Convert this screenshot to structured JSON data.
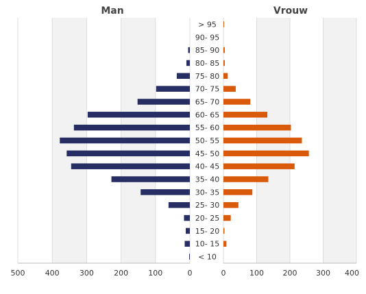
{
  "chart_data": {
    "type": "bar",
    "orientation": "horizontal",
    "layout": "population-pyramid",
    "categories": [
      "> 95",
      "90- 95",
      "85- 90",
      "80- 85",
      "75- 80",
      "70- 75",
      "65- 70",
      "60- 65",
      "55- 60",
      "50- 55",
      "45- 50",
      "40- 45",
      "35- 40",
      "30- 35",
      "25- 30",
      "20- 25",
      "15- 20",
      "10- 15",
      "< 10"
    ],
    "series": [
      {
        "name": "Man",
        "color": "#262e63",
        "values": [
          0,
          0,
          5,
          10,
          38,
          98,
          152,
          297,
          337,
          378,
          358,
          345,
          228,
          143,
          62,
          17,
          12,
          15,
          2
        ]
      },
      {
        "name": "Vrouw",
        "color": "#d95a0b",
        "values": [
          2,
          0,
          4,
          4,
          13,
          37,
          81,
          132,
          203,
          236,
          257,
          214,
          135,
          87,
          45,
          22,
          3,
          9,
          0
        ]
      }
    ],
    "left_axis": {
      "ticks": [
        "500",
        "400",
        "300",
        "200",
        "100",
        "0"
      ],
      "range": [
        500,
        0
      ]
    },
    "right_axis": {
      "ticks": [
        "0",
        "100",
        "200",
        "300",
        "400"
      ],
      "range": [
        0,
        400
      ]
    },
    "grid": true
  }
}
